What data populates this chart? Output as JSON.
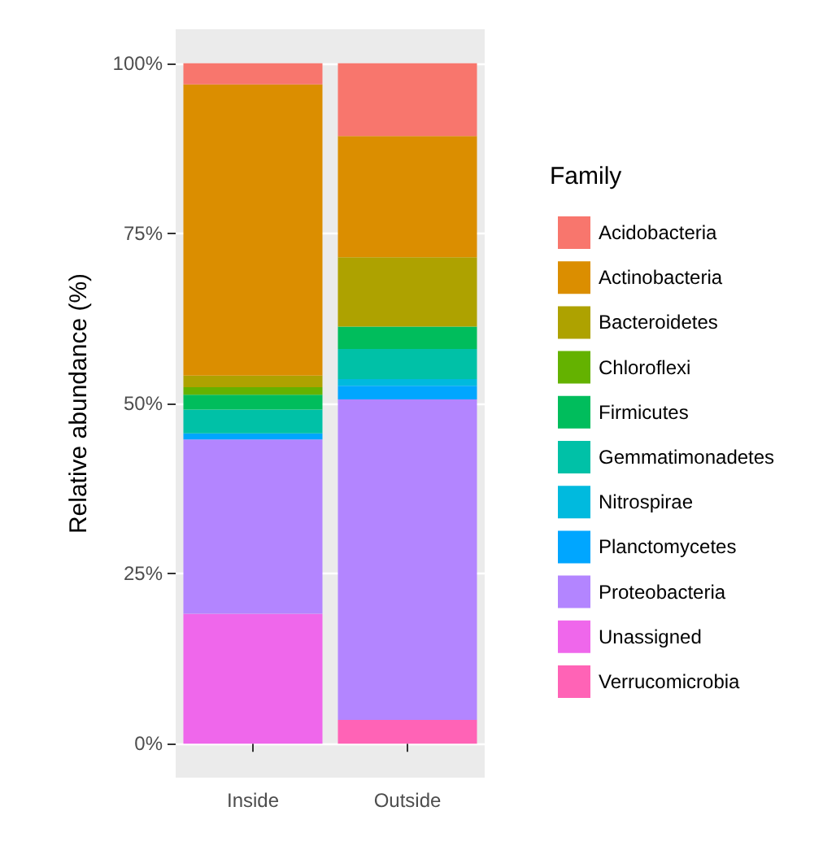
{
  "chart_data": {
    "type": "bar",
    "stacked": true,
    "ylabel": "Relative abundance (%)",
    "legend_title": "Family",
    "categories": [
      "Inside",
      "Outside"
    ],
    "ylim": [
      -5,
      105
    ],
    "yticks": [
      {
        "value": 0,
        "label": "0%"
      },
      {
        "value": 25,
        "label": "25%"
      },
      {
        "value": 50,
        "label": "50%"
      },
      {
        "value": 75,
        "label": "75%"
      },
      {
        "value": 100,
        "label": "100%"
      }
    ],
    "grid": "y",
    "legend": "right",
    "series": [
      {
        "name": "Verrucomicrobia",
        "color": "#ff63b6",
        "values": [
          0,
          3.5
        ]
      },
      {
        "name": "Unassigned",
        "color": "#ef67eb",
        "values": [
          19.1,
          0
        ]
      },
      {
        "name": "Proteobacteria",
        "color": "#b385ff",
        "values": [
          25.6,
          47.1
        ]
      },
      {
        "name": "Planctomycetes",
        "color": "#00a6ff",
        "values": [
          0.9,
          2.0
        ]
      },
      {
        "name": "Nitrospirae",
        "color": "#00bade",
        "values": [
          0,
          1.0
        ]
      },
      {
        "name": "Gemmatimonadetes",
        "color": "#00c1a7",
        "values": [
          3.5,
          4.4
        ]
      },
      {
        "name": "Firmicutes",
        "color": "#00bd5c",
        "values": [
          2.2,
          3.3
        ]
      },
      {
        "name": "Chloroflexi",
        "color": "#64b200",
        "values": [
          1.1,
          0
        ]
      },
      {
        "name": "Bacteroidetes",
        "color": "#aea200",
        "values": [
          1.7,
          10.2
        ]
      },
      {
        "name": "Actinobacteria",
        "color": "#db8e00",
        "values": [
          42.8,
          17.8
        ]
      },
      {
        "name": "Acidobacteria",
        "color": "#f8766d",
        "values": [
          3.1,
          10.7
        ]
      }
    ]
  }
}
